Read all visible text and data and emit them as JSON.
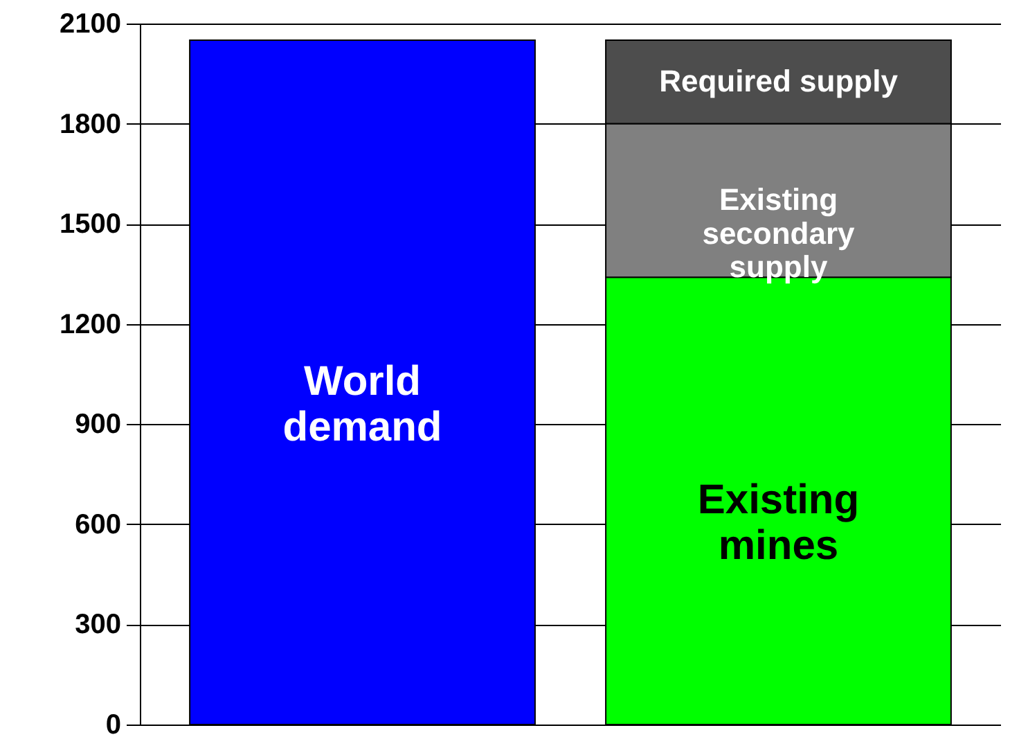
{
  "chart_data": {
    "type": "bar",
    "stacked": true,
    "categories": [
      null,
      null
    ],
    "series": [
      {
        "name": "World demand",
        "color": "#0000ff",
        "values": [
          2050,
          null
        ]
      },
      {
        "name": "Existing mines",
        "color": "#00ff00",
        "values": [
          null,
          1340
        ]
      },
      {
        "name": "Existing secondary supply",
        "color": "#808080",
        "values": [
          null,
          460
        ]
      },
      {
        "name": "Required supply",
        "color": "#4d4d4d",
        "values": [
          null,
          250
        ]
      }
    ],
    "ylim": [
      0,
      2100
    ],
    "yticks": [
      0,
      300,
      600,
      900,
      1200,
      1500,
      1800,
      2100
    ],
    "grid": "y",
    "legend": false
  }
}
